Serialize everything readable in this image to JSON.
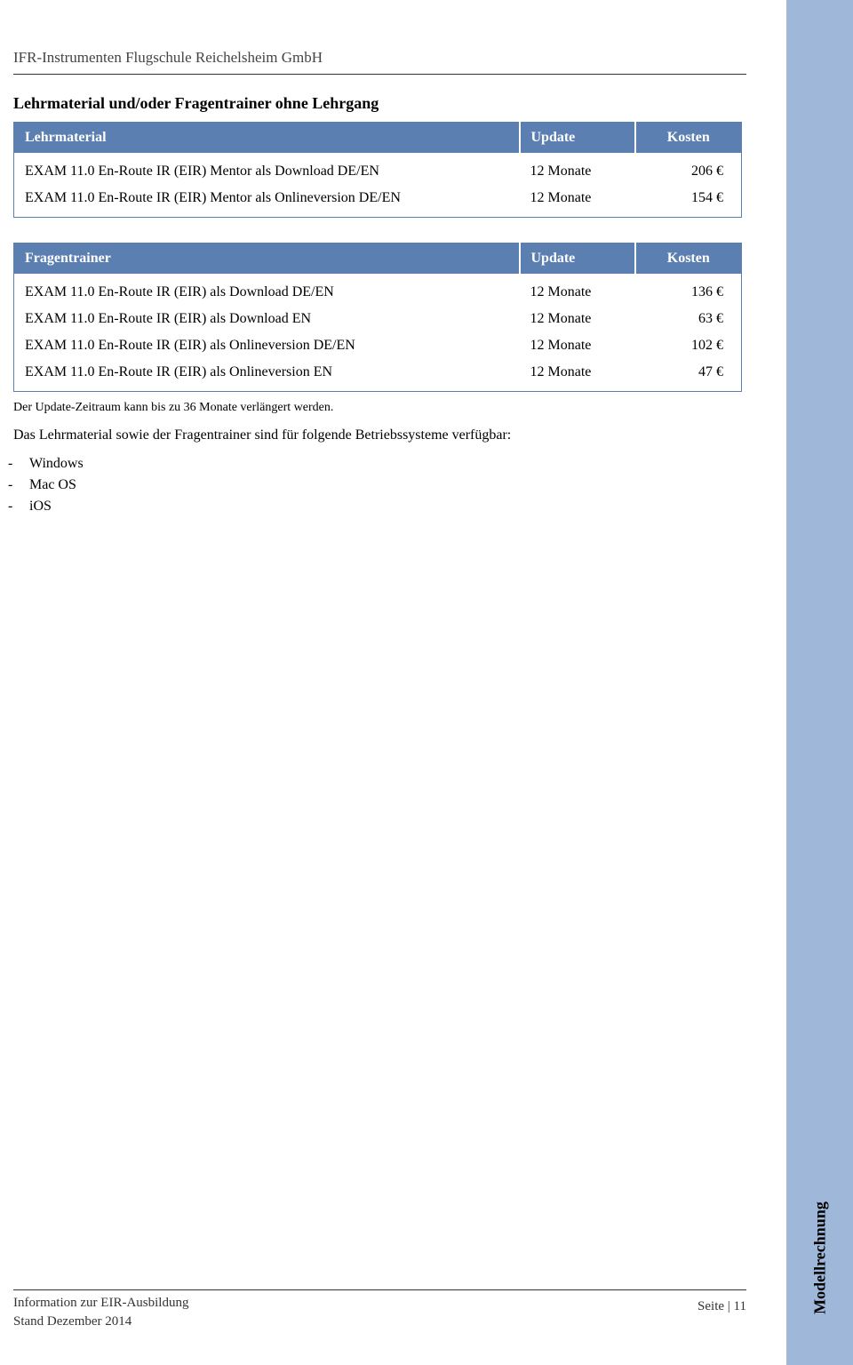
{
  "company": "IFR-Instrumenten Flugschule Reichelsheim GmbH",
  "section_title": "Lehrmaterial und/oder  Fragentrainer ohne Lehrgang",
  "table1": {
    "headers": {
      "name": "Lehrmaterial",
      "update": "Update",
      "cost": "Kosten"
    },
    "rows": [
      {
        "name": "EXAM 11.0 En-Route IR (EIR) Mentor als Download DE/EN",
        "update": "12 Monate",
        "cost": "206 €"
      },
      {
        "name": "EXAM 11.0 En-Route IR (EIR) Mentor als Onlineversion DE/EN",
        "update": "12 Monate",
        "cost": "154 €"
      }
    ]
  },
  "table2": {
    "headers": {
      "name": "Fragentrainer",
      "update": "Update",
      "cost": "Kosten"
    },
    "rows": [
      {
        "name": "EXAM 11.0 En-Route IR (EIR) als Download DE/EN",
        "update": "12 Monate",
        "cost": "136 €"
      },
      {
        "name": "EXAM 11.0 En-Route IR (EIR) als Download EN",
        "update": "12 Monate",
        "cost": "63 €"
      },
      {
        "name": "EXAM 11.0 En-Route IR (EIR) als Onlineversion DE/EN",
        "update": "12 Monate",
        "cost": "102 €"
      },
      {
        "name": "EXAM 11.0 En-Route IR (EIR) als Onlineversion EN",
        "update": "12 Monate",
        "cost": "47 €"
      }
    ]
  },
  "note": "Der Update-Zeitraum kann bis zu 36 Monate verlängert werden.",
  "body_text": "Das Lehrmaterial sowie der Fragentrainer sind für folgende Betriebssysteme verfügbar:",
  "os_list": [
    "Windows",
    "Mac OS",
    "iOS"
  ],
  "sidebar_label": "Modellrechnung",
  "footer": {
    "line1": "Information zur EIR-Ausbildung",
    "line2": "Stand  Dezember 2014",
    "page": "Seite | 11"
  },
  "colors": {
    "sidebar_bg": "#9fb8d9",
    "table_header_bg": "#5b7fb0",
    "table_header_text": "#ffffff",
    "table_border": "#5b7fb0",
    "text": "#000000",
    "rule": "#333333"
  }
}
